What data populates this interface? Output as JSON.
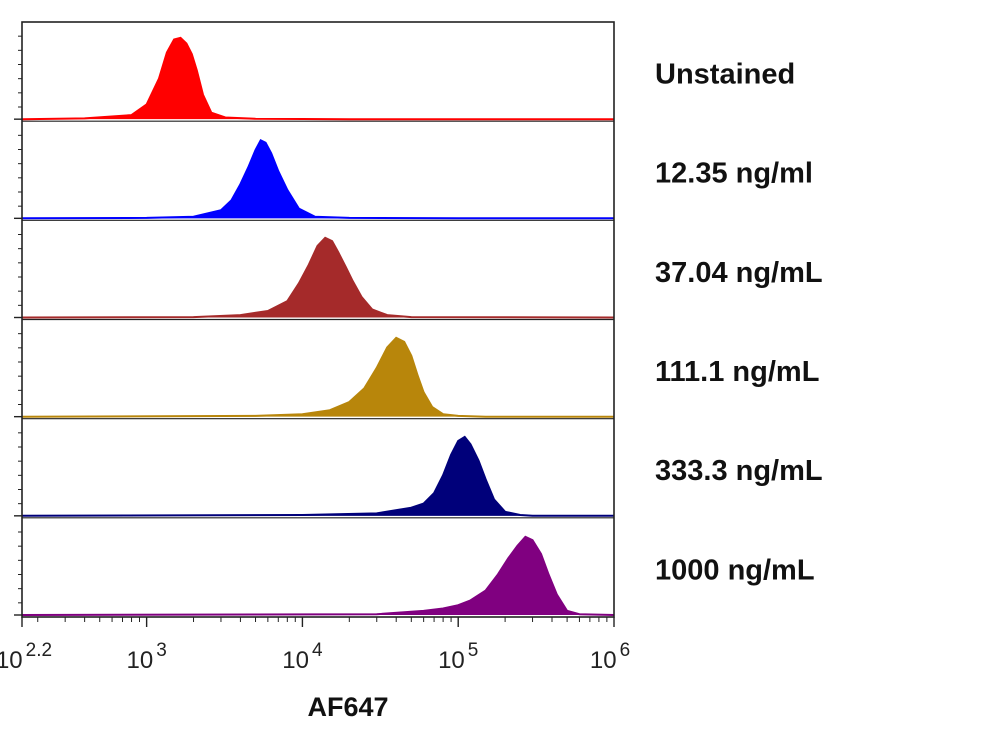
{
  "chart_data": {
    "type": "area",
    "title": "",
    "xlabel": "AF647",
    "ylabel": "",
    "x_scale": "log10",
    "xlim": [
      158.5,
      1000000
    ],
    "x_ticks": [
      {
        "value": 158.5,
        "base": "10",
        "exp": "2.2"
      },
      {
        "value": 1000,
        "base": "10",
        "exp": "3"
      },
      {
        "value": 10000,
        "base": "10",
        "exp": "4"
      },
      {
        "value": 100000,
        "base": "10",
        "exp": "5"
      },
      {
        "value": 1000000,
        "base": "10",
        "exp": "6"
      }
    ],
    "grid": false,
    "legend": "right",
    "series": [
      {
        "name": "Unstained",
        "color": "#FF0000",
        "x": [
          158.5,
          400,
          800,
          1000,
          1200,
          1350,
          1500,
          1650,
          1800,
          1950,
          2100,
          2300,
          2600,
          3200,
          5000,
          20000,
          100000,
          1000000
        ],
        "y": [
          0,
          0.01,
          0.05,
          0.18,
          0.5,
          0.82,
          0.98,
          1.0,
          0.93,
          0.8,
          0.6,
          0.3,
          0.08,
          0.02,
          0.005,
          0,
          0,
          0
        ]
      },
      {
        "name": "12.35 ng/ml",
        "color": "#0000FF",
        "x": [
          158.5,
          1000,
          2000,
          3000,
          3500,
          4000,
          4500,
          5000,
          5400,
          5800,
          6300,
          7000,
          8000,
          9500,
          12000,
          20000,
          100000,
          1000000
        ],
        "y": [
          0,
          0.005,
          0.02,
          0.1,
          0.22,
          0.42,
          0.63,
          0.84,
          0.96,
          0.93,
          0.8,
          0.58,
          0.35,
          0.12,
          0.02,
          0.005,
          0,
          0
        ]
      },
      {
        "name": "37.04 ng/mL",
        "color": "#A52A2A",
        "x": [
          158.5,
          2000,
          4000,
          6000,
          8000,
          9500,
          11000,
          12500,
          14000,
          15500,
          17000,
          19000,
          21000,
          24000,
          28000,
          35000,
          50000,
          1000000
        ],
        "y": [
          0,
          0.005,
          0.03,
          0.08,
          0.2,
          0.42,
          0.65,
          0.88,
          0.98,
          0.94,
          0.8,
          0.62,
          0.45,
          0.25,
          0.1,
          0.03,
          0.005,
          0
        ]
      },
      {
        "name": "111.1 ng/mL",
        "color": "#B8860B",
        "x": [
          158.5,
          5000,
          10000,
          15000,
          20000,
          25000,
          30000,
          35000,
          40000,
          45000,
          50000,
          55000,
          60000,
          68000,
          80000,
          100000,
          150000,
          1000000
        ],
        "y": [
          0,
          0.01,
          0.03,
          0.08,
          0.18,
          0.35,
          0.6,
          0.85,
          0.97,
          0.92,
          0.75,
          0.5,
          0.3,
          0.12,
          0.03,
          0.01,
          0,
          0
        ]
      },
      {
        "name": "333.3 ng/mL",
        "color": "#00007A",
        "x": [
          158.5,
          10000,
          30000,
          50000,
          60000,
          70000,
          80000,
          90000,
          100000,
          110000,
          120000,
          135000,
          150000,
          170000,
          200000,
          250000,
          300000,
          1000000
        ],
        "y": [
          0,
          0.01,
          0.03,
          0.1,
          0.15,
          0.28,
          0.5,
          0.75,
          0.92,
          0.97,
          0.88,
          0.68,
          0.45,
          0.2,
          0.05,
          0.01,
          0,
          0
        ]
      },
      {
        "name": "1000 ng/mL",
        "color": "#800080",
        "x": [
          158.5,
          30000,
          60000,
          80000,
          100000,
          120000,
          150000,
          180000,
          210000,
          240000,
          270000,
          300000,
          340000,
          380000,
          430000,
          500000,
          600000,
          1000000
        ],
        "y": [
          0,
          0.01,
          0.05,
          0.08,
          0.12,
          0.18,
          0.3,
          0.5,
          0.7,
          0.85,
          0.96,
          0.92,
          0.75,
          0.5,
          0.25,
          0.05,
          0.01,
          0
        ]
      }
    ]
  }
}
